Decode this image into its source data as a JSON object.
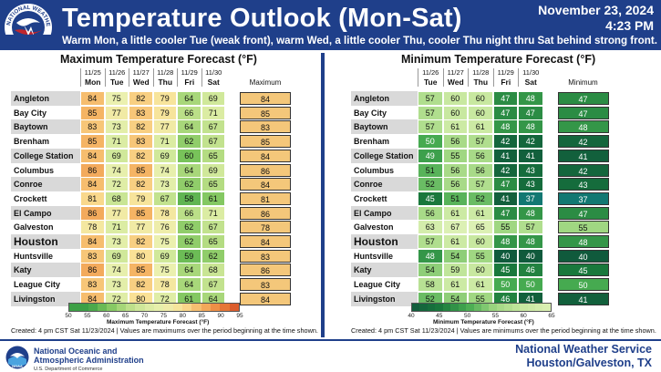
{
  "header": {
    "logo_text": "NATIONAL WEATHER SERVICE",
    "title": "Temperature Outlook (Mon-Sat)",
    "date": "November 23, 2024",
    "time": "4:23 PM",
    "subtitle": "Warm Mon, a little cooler Tue (weak front), warm Wed, a little cooler Thu, cooler Thu night thru Sat behind strong front."
  },
  "max_panel": {
    "title": "Maximum Temperature Forecast (°F)",
    "summary_label": "Maximum",
    "dates": [
      "11/25",
      "11/26",
      "11/27",
      "11/28",
      "11/29",
      "11/30"
    ],
    "days": [
      "Mon",
      "Tue",
      "Wed",
      "Thu",
      "Fri",
      "Sat"
    ],
    "rows": [
      {
        "city": "Angleton",
        "values": [
          84,
          75,
          82,
          79,
          64,
          69
        ],
        "summary": 84
      },
      {
        "city": "Bay City",
        "values": [
          85,
          77,
          83,
          79,
          66,
          71
        ],
        "summary": 85
      },
      {
        "city": "Baytown",
        "values": [
          83,
          73,
          82,
          77,
          64,
          67
        ],
        "summary": 83
      },
      {
        "city": "Brenham",
        "values": [
          85,
          71,
          83,
          71,
          62,
          67
        ],
        "summary": 85
      },
      {
        "city": "College Station",
        "values": [
          84,
          69,
          82,
          69,
          60,
          65
        ],
        "summary": 84
      },
      {
        "city": "Columbus",
        "values": [
          86,
          74,
          85,
          74,
          64,
          69
        ],
        "summary": 86
      },
      {
        "city": "Conroe",
        "values": [
          84,
          72,
          82,
          73,
          62,
          65
        ],
        "summary": 84
      },
      {
        "city": "Crockett",
        "values": [
          81,
          68,
          79,
          67,
          58,
          61
        ],
        "summary": 81
      },
      {
        "city": "El Campo",
        "values": [
          86,
          77,
          85,
          78,
          66,
          71
        ],
        "summary": 86
      },
      {
        "city": "Galveston",
        "values": [
          78,
          71,
          77,
          76,
          62,
          67
        ],
        "summary": 78
      },
      {
        "city": "Houston",
        "values": [
          84,
          73,
          82,
          75,
          62,
          65
        ],
        "summary": 84
      },
      {
        "city": "Huntsville",
        "values": [
          83,
          69,
          80,
          69,
          59,
          62
        ],
        "summary": 83
      },
      {
        "city": "Katy",
        "values": [
          86,
          74,
          85,
          75,
          64,
          68
        ],
        "summary": 86
      },
      {
        "city": "League City",
        "values": [
          83,
          73,
          82,
          78,
          64,
          67
        ],
        "summary": 83
      },
      {
        "city": "Livingston",
        "values": [
          84,
          72,
          80,
          72,
          61,
          64
        ],
        "summary": 84
      }
    ],
    "scale_ticks": [
      "50",
      "55",
      "60",
      "65",
      "70",
      "75",
      "80",
      "85",
      "90",
      "95"
    ],
    "scale_label": "Maximum Temperature Forecast (°F)",
    "note": "Created: 4 pm CST Sat 11/23/2024  |  Values are maximums over the period beginning at the time shown."
  },
  "min_panel": {
    "title": "Minimum Temperature Forecast (°F)",
    "summary_label": "Minimum",
    "dates": [
      "11/26",
      "11/27",
      "11/28",
      "11/29",
      "11/30"
    ],
    "days": [
      "Tue",
      "Wed",
      "Thu",
      "Fri",
      "Sat"
    ],
    "rows": [
      {
        "city": "Angleton",
        "values": [
          57,
          60,
          60,
          47,
          48
        ],
        "summary": 47
      },
      {
        "city": "Bay City",
        "values": [
          57,
          60,
          60,
          47,
          47
        ],
        "summary": 47
      },
      {
        "city": "Baytown",
        "values": [
          57,
          61,
          61,
          48,
          48
        ],
        "summary": 48
      },
      {
        "city": "Brenham",
        "values": [
          50,
          56,
          57,
          42,
          42
        ],
        "summary": 42
      },
      {
        "city": "College Station",
        "values": [
          49,
          55,
          56,
          41,
          41
        ],
        "summary": 41
      },
      {
        "city": "Columbus",
        "values": [
          51,
          56,
          56,
          42,
          43
        ],
        "summary": 42
      },
      {
        "city": "Conroe",
        "values": [
          52,
          56,
          57,
          47,
          43
        ],
        "summary": 43
      },
      {
        "city": "Crockett",
        "values": [
          45,
          51,
          52,
          41,
          37
        ],
        "summary": 37
      },
      {
        "city": "El Campo",
        "values": [
          56,
          61,
          61,
          47,
          48
        ],
        "summary": 47
      },
      {
        "city": "Galveston",
        "values": [
          63,
          67,
          65,
          55,
          57
        ],
        "summary": 55
      },
      {
        "city": "Houston",
        "values": [
          57,
          61,
          60,
          48,
          48
        ],
        "summary": 48
      },
      {
        "city": "Huntsville",
        "values": [
          48,
          54,
          55,
          40,
          40
        ],
        "summary": 40
      },
      {
        "city": "Katy",
        "values": [
          54,
          59,
          60,
          45,
          46
        ],
        "summary": 45
      },
      {
        "city": "League City",
        "values": [
          58,
          61,
          61,
          50,
          50
        ],
        "summary": 50
      },
      {
        "city": "Livingston",
        "values": [
          52,
          54,
          55,
          46,
          41
        ],
        "summary": 41
      }
    ],
    "scale_ticks": [
      "40",
      "45",
      "50",
      "55",
      "60",
      "65"
    ],
    "scale_label": "Minimum Temperature Forecast (°F)",
    "note": "Created: 4 pm CST Sat 11/23/2024  |  Values are minimums over the period beginning at the time shown."
  },
  "footer": {
    "noaa_logo_text": "NOAA",
    "noaa_line1": "National Oceanic and",
    "noaa_line2": "Atmospheric Administration",
    "noaa_line3": "U.S. Department of Commerce",
    "nws_line1": "National Weather Service",
    "nws_line2": "Houston/Galveston, TX"
  },
  "colors": {
    "header_blue": "#1f3f8a",
    "summary_max": "#f4c77a",
    "city_shade": "#d9d9d9"
  }
}
